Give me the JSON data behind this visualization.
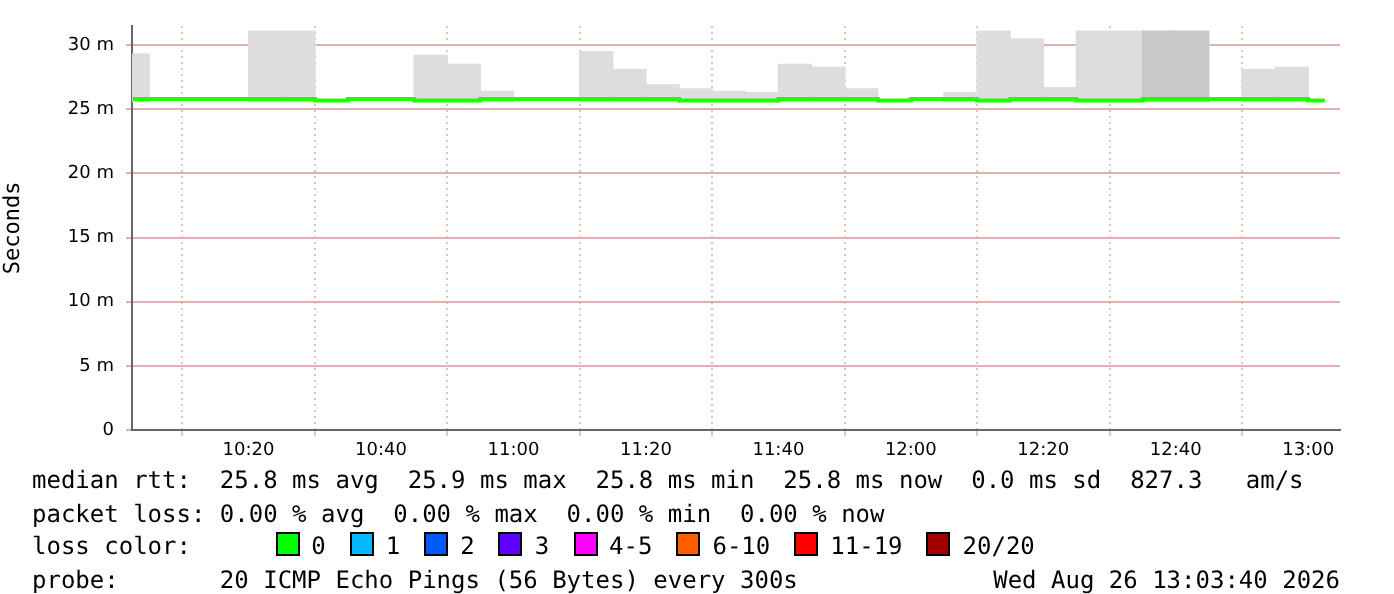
{
  "chart_data": {
    "type": "bar",
    "ylabel": "Seconds",
    "x": [
      10.0417,
      10.125,
      10.2083,
      10.2917,
      10.375,
      10.4583,
      10.5417,
      10.625,
      10.7083,
      10.7917,
      10.875,
      10.9583,
      11.0417,
      11.125,
      11.2083,
      11.2917,
      11.375,
      11.4583,
      11.5417,
      11.625,
      11.7083,
      11.7917,
      11.875,
      11.9583,
      12.0417,
      12.125,
      12.2083,
      12.2917,
      12.375,
      12.4583,
      12.5417,
      12.625,
      12.7083,
      12.7917,
      12.875,
      12.9583,
      13.0417
    ],
    "series": [
      {
        "colors": [
          "#dddddd",
          "#dddddd",
          "#dddddd",
          "#dddddd",
          "#dddddd",
          "#dddddd",
          "#dddddd",
          "#dddddd",
          "#dddddd",
          "#dddddd",
          "#dddddd",
          "#dddddd",
          "#dddddd",
          "#dddddd",
          "#dddddd",
          "#dddddd",
          "#dddddd",
          "#dddddd",
          "#dddddd",
          "#dddddd",
          "#dddddd",
          "#dddddd",
          "#dddddd",
          "#dddddd",
          "#dddddd",
          "#dddddd",
          "#dddddd",
          "#dddddd",
          "#dddddd",
          "#dddddd",
          "#dddddd",
          "#c8c8c8",
          "#c8c8c8",
          "#dddddd",
          "#dddddd",
          "#dddddd",
          "#dddddd"
        ],
        "base": [
          25.6,
          null,
          null,
          null,
          25.6,
          25.6,
          null,
          null,
          null,
          25.6,
          25.6,
          25.6,
          null,
          null,
          25.6,
          25.6,
          25.6,
          25.6,
          25.6,
          25.6,
          25.6,
          25.6,
          25.6,
          null,
          null,
          25.6,
          25.6,
          25.6,
          25.6,
          25.6,
          25.6,
          25.6,
          25.6,
          null,
          25.6,
          25.6,
          null
        ],
        "values": [
          3.7,
          null,
          null,
          null,
          5.5,
          5.5,
          null,
          null,
          null,
          3.6,
          2.9,
          0.8,
          null,
          null,
          3.9,
          2.5,
          1.3,
          1.0,
          0.8,
          0.7,
          2.9,
          2.7,
          1.0,
          null,
          null,
          0.7,
          5.5,
          4.9,
          1.1,
          5.5,
          5.5,
          5.5,
          5.5,
          null,
          2.5,
          2.7,
          null
        ]
      },
      {
        "type": "step",
        "color": "#20ff00",
        "values": [
          25.8,
          25.8,
          25.8,
          25.8,
          25.8,
          25.8,
          25.7,
          25.8,
          25.8,
          25.7,
          25.7,
          25.8,
          25.8,
          25.8,
          25.8,
          25.8,
          25.8,
          25.7,
          25.7,
          25.7,
          25.8,
          25.8,
          25.8,
          25.7,
          25.8,
          25.8,
          25.7,
          25.8,
          25.8,
          25.7,
          25.7,
          25.8,
          25.8,
          25.8,
          25.8,
          25.8,
          25.7
        ]
      }
    ],
    "xlim": [
      10.04,
      13.08
    ],
    "xticks": [
      {
        "value": 10.3333,
        "label": "10:20"
      },
      {
        "value": 10.6667,
        "label": "10:40"
      },
      {
        "value": 11,
        "label": "11:00"
      },
      {
        "value": 11.3333,
        "label": "11:20"
      },
      {
        "value": 11.6667,
        "label": "11:40"
      },
      {
        "value": 12,
        "label": "12:00"
      },
      {
        "value": 12.3333,
        "label": "12:20"
      },
      {
        "value": 12.6667,
        "label": "12:40"
      },
      {
        "value": 13,
        "label": "13:00"
      }
    ],
    "ylim": [
      0,
      31.5
    ],
    "yticks": [
      0,
      {
        "value": 5,
        "label": "5 m"
      },
      {
        "value": 10,
        "label": "10 m"
      },
      {
        "value": 15,
        "label": "15 m"
      },
      {
        "value": 20,
        "label": "20 m"
      },
      {
        "value": 25,
        "label": "25 m"
      },
      {
        "value": 30,
        "label": "30 m"
      }
    ],
    "grid": true,
    "legend": false,
    "annotations": [
      "median rtt:  25.8 ms avg  25.9 ms max  25.8 ms min  25.8 ms now  0.0 ms sd  827.3   am/s",
      "packet loss: 0.00 % avg  0.00 % max  0.00 % min  0.00 % now",
      "loss color:",
      "0",
      "1",
      "2",
      "3",
      "4-5",
      "6-10",
      "11-19",
      "20/20",
      "probe:       20 ICMP Echo Pings (56 Bytes) every 300s",
      "Wed Aug 26 13:03:40 2026"
    ]
  }
}
